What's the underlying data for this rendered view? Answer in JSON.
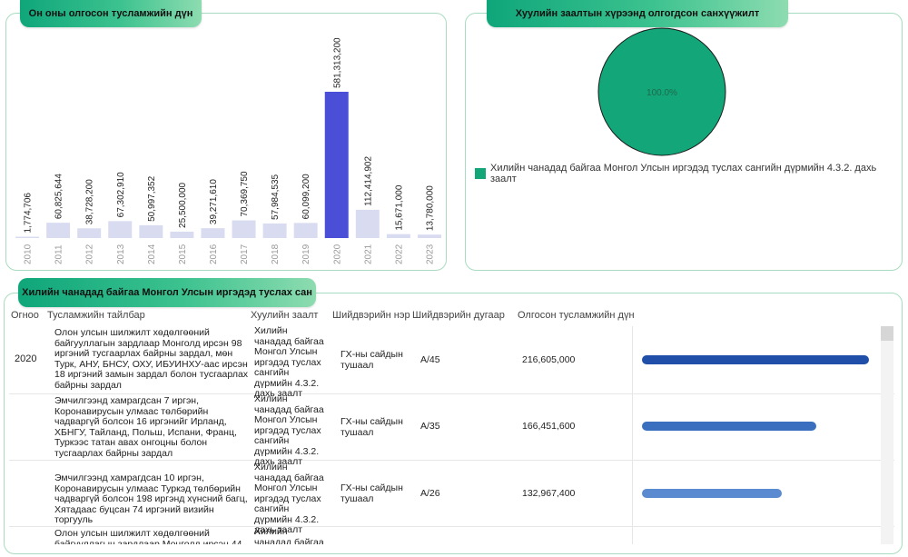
{
  "bar_panel": {
    "title": "Он оны олгосон тусламжийн дүн"
  },
  "pie_panel": {
    "title": "Хуулийн заалтын хүрээнд олгогдсон санхүүжилт",
    "slice_label": "100.0%",
    "legend": "Хилийн чанадад байгаа Монгол Улсын иргэдэд туслах сангийн дүрмийн 4.3.2. дахь заалт",
    "color": "#13a678"
  },
  "table_panel": {
    "title": "Хилийн чанадад байгаа Монгол Улсын иргэдэд туслах сан",
    "headers": {
      "year": "Огноо",
      "description": "Тусламжийн тайлбар",
      "law": "Хуулийн заалт",
      "decision_name": "Шийдвэрийн нэр",
      "decision_number": "Шийдвэрийн дугаар",
      "amount": "Олгосон тусламжийн дүн"
    },
    "rows": [
      {
        "year": "2020",
        "description": "Олон улсын шилжилт хөдөлгөөний байгууллагын зардлаар Монголд ирсэн 98 иргэний тусгаарлах байрны зардал, мөн Турк, АНУ, БНСУ, ОХУ, ИБУИНХУ-аас ирсэн 18 иргэний замын зардал болон тусгаарлах байрны зардал",
        "law": "Хилийн чанадад байгаа Монгол Улсын иргэдэд туслах сангийн дүрмийн 4.3.2. дахь заалт",
        "decision_name": "ГХ-ны сайдын тушаал",
        "decision_number": "А/45",
        "amount": "216,605,000",
        "fraction": 1.0,
        "color": "#1f4fa8"
      },
      {
        "year": "",
        "description": "Эмчилгээнд хамрагдсан 7 иргэн, Коронавирусын улмаас төлбөрийн чадваргүй болсон 16 иргэнийг Ирланд, ХБНГУ, Тайланд, Польш, Испани, Франц, Туркээс татан авах онгоцны болон тусгаарлах байрны зардал",
        "law": "Хилийн чанадад байгаа Монгол Улсын иргэдэд туслах сангийн дүрмийн 4.3.2. дахь заалт",
        "decision_name": "ГХ-ны сайдын тушаал",
        "decision_number": "А/35",
        "amount": "166,451,600",
        "fraction": 0.768,
        "color": "#3a6fbf"
      },
      {
        "year": "",
        "description": "Эмчилгээнд хамрагдсан 10 иргэн, Коронавирусын улмаас Туркэд төлбөрийн чадваргүй болсон 198 иргэнд хүнсний багц, Хятадаас буцсан 74 иргэний визийн торгууль",
        "law": "Хилийн чанадад байгаа Монгол Улсын иргэдэд туслах сангийн дүрмийн 4.3.2. дахь заалт",
        "decision_name": "ГХ-ны сайдын тушаал",
        "decision_number": "А/26",
        "amount": "132,967,400",
        "fraction": 0.614,
        "color": "#5a8ad0"
      },
      {
        "year": "",
        "description": "Олон улсын шилжилт хөдөлгөөний байгууллагын зардлаар Монголд ирсэн 44",
        "law": "Хилийн чанадад байгаа Монгол",
        "decision_name": "",
        "decision_number": "",
        "amount": "",
        "fraction": null,
        "color": "#5a8ad0"
      }
    ]
  },
  "chart_data": [
    {
      "type": "bar",
      "title": "Он оны олгосон тусламжийн дүн",
      "categories": [
        "2010",
        "2011",
        "2012",
        "2013",
        "2014",
        "2015",
        "2016",
        "2017",
        "2018",
        "2019",
        "2020",
        "2021",
        "2022",
        "2023"
      ],
      "values": [
        1774706,
        60825644,
        38728200,
        67302910,
        50997352,
        25500000,
        39271610,
        70369750,
        57984535,
        60099200,
        581313200,
        112414902,
        15671000,
        13780000
      ],
      "labels": [
        "1,774,706",
        "60,825,644",
        "38,728,200",
        "67,302,910",
        "50,997,352",
        "25,500,000",
        "39,271,610",
        "70,369,750",
        "57,984,535",
        "60,099,200",
        "581,313,200",
        "112,414,902",
        "15,671,000",
        "13,780,000"
      ],
      "highlight_category": "2020",
      "colors": {
        "bar": "#d9dcf1",
        "highlight": "#4b4fd8"
      },
      "xlabel": "",
      "ylabel": "",
      "ylim": [
        0,
        581313200
      ]
    },
    {
      "type": "pie",
      "title": "Хуулийн заалтын хүрээнд олгогдсон санхүүжилт",
      "categories": [
        "Хилийн чанадад байгаа Монгол Улсын иргэдэд туслах сангийн дүрмийн 4.3.2. дахь заалт"
      ],
      "values": [
        100.0
      ],
      "legend_position": "bottom-left"
    }
  ]
}
